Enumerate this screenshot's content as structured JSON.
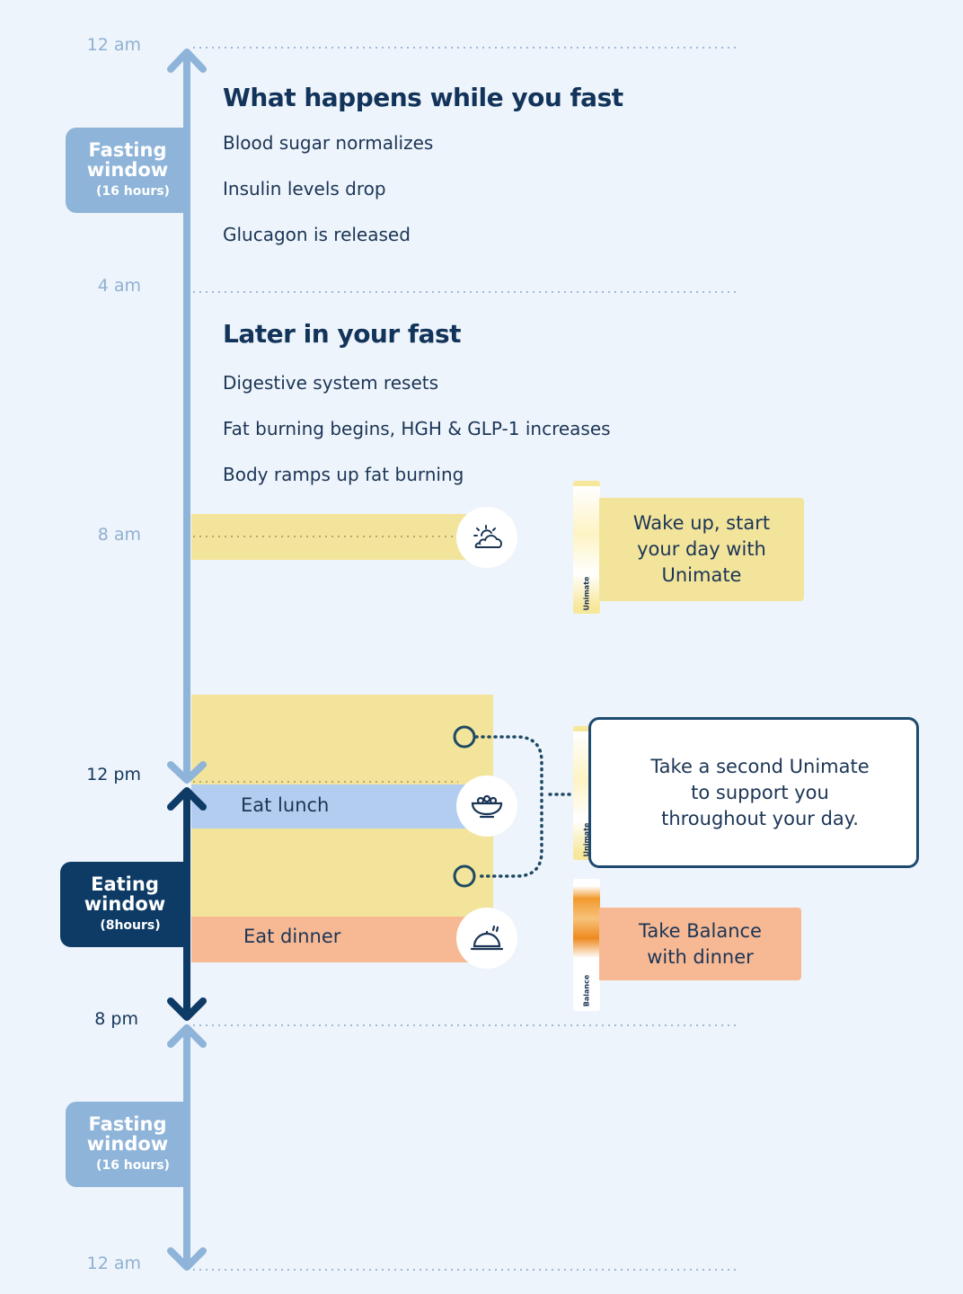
{
  "colors": {
    "background": "#eef4fb",
    "fasting": "#8fb4d9",
    "eating": "#0d3b66",
    "morning": "#f3e49b",
    "lunch": "#b3cdf0",
    "dinner": "#f7b994"
  },
  "times": [
    "12 am",
    "4 am",
    "8 am",
    "12 pm",
    "8 pm",
    "12 am"
  ],
  "fasting_window_top": {
    "title_line1": "Fasting",
    "title_line2": "window",
    "duration": "(16 hours)"
  },
  "eating_window": {
    "title_line1": "Eating",
    "title_line2": "window",
    "duration": "(8hours)"
  },
  "fasting_window_bottom": {
    "title_line1": "Fasting",
    "title_line2": "window",
    "duration": "(16 hours)"
  },
  "section1": {
    "heading": "What happens while you fast",
    "items": [
      "Blood sugar normalizes",
      "Insulin levels drop",
      "Glucagon is released"
    ]
  },
  "section2": {
    "heading": "Later in your fast",
    "items": [
      "Digestive system resets",
      "Fat burning begins, HGH & GLP-1 increases",
      "Body ramps up fat burning"
    ]
  },
  "events": {
    "lunch": "Eat lunch",
    "dinner": "Eat dinner",
    "icons": [
      "sun-cloud-icon",
      "bowl-icon",
      "cloche-icon"
    ]
  },
  "cards": {
    "wake": [
      "Wake up, start",
      "your day with",
      "Unimate"
    ],
    "second": [
      "Take a second Unimate",
      "to support you",
      "throughout your day."
    ],
    "balance": [
      "Take Balance",
      "with dinner"
    ]
  },
  "products": {
    "unimate": "Unimate",
    "balance": "Balance"
  }
}
